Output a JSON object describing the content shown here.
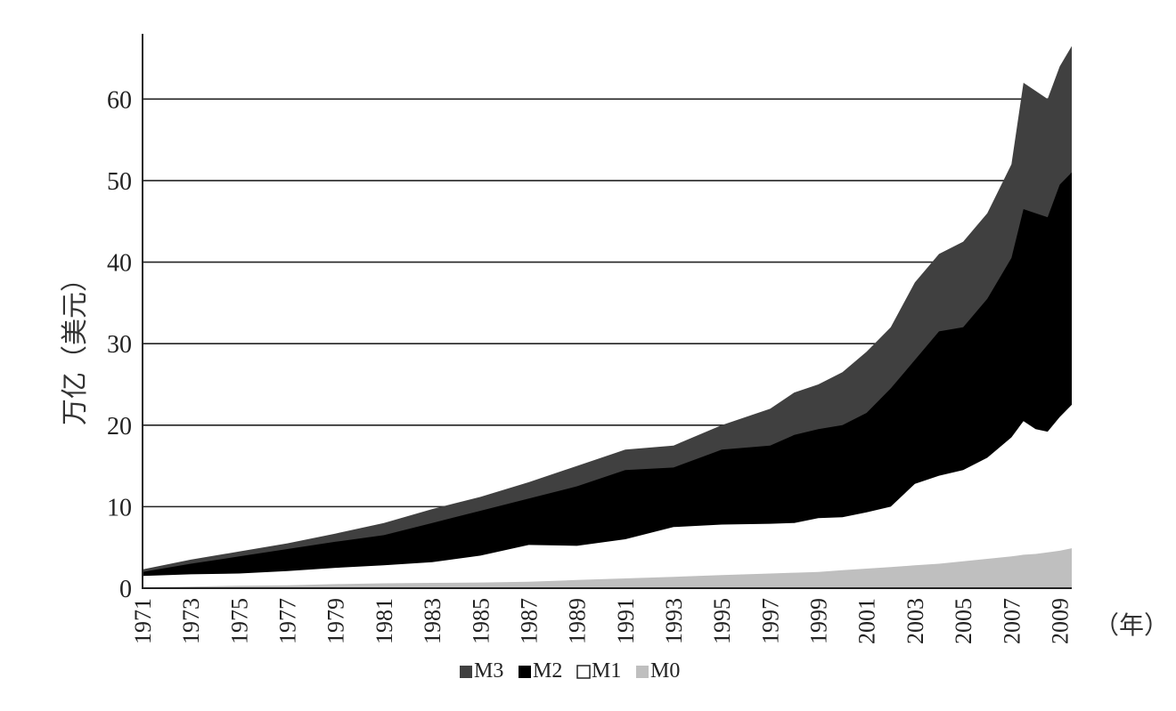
{
  "chart_data": {
    "type": "area",
    "title": "",
    "ylabel": "万亿（美元）",
    "xunit": "（年）",
    "ylim": [
      0,
      68
    ],
    "yticks": [
      0,
      10,
      20,
      30,
      40,
      50,
      60
    ],
    "xtick_labels": [
      "1971",
      "1973",
      "1975",
      "1977",
      "1979",
      "1981",
      "1983",
      "1985",
      "1987",
      "1989",
      "1991",
      "1993",
      "1995",
      "1997",
      "1999",
      "2001",
      "2003",
      "2005",
      "2007",
      "2009"
    ],
    "grid": "horizontal",
    "legend_position": "bottom",
    "x": [
      1971,
      1973,
      1975,
      1977,
      1979,
      1981,
      1983,
      1985,
      1987,
      1989,
      1991,
      1993,
      1995,
      1997,
      1998,
      1999,
      2000,
      2001,
      2002,
      2003,
      2004,
      2005,
      2006,
      2007,
      2007.5,
      2008,
      2008.5,
      2009,
      2009.5
    ],
    "series": [
      {
        "name": "M3",
        "color": "#404040",
        "values": [
          2.3,
          3.5,
          4.5,
          5.5,
          6.7,
          8.0,
          9.7,
          11.2,
          13.0,
          15.0,
          17.0,
          17.5,
          20.0,
          22.0,
          24.0,
          25.0,
          26.5,
          29.0,
          32.0,
          37.5,
          41.0,
          42.5,
          46.0,
          52.0,
          62.0,
          61.0,
          60.0,
          64.0,
          66.5
        ]
      },
      {
        "name": "M2",
        "color": "#000000",
        "values": [
          2.0,
          3.0,
          3.9,
          4.8,
          5.7,
          6.5,
          8.0,
          9.5,
          11.0,
          12.5,
          14.5,
          14.8,
          17.0,
          17.5,
          18.8,
          19.5,
          20.0,
          21.5,
          24.5,
          28.0,
          31.5,
          32.0,
          35.5,
          40.5,
          46.5,
          46.0,
          45.5,
          49.5,
          51.0
        ]
      },
      {
        "name": "M1",
        "color": "#ffffff",
        "values": [
          1.5,
          1.7,
          1.8,
          2.1,
          2.5,
          2.8,
          3.2,
          4.0,
          5.3,
          5.2,
          6.0,
          7.5,
          7.8,
          7.9,
          8.0,
          8.6,
          8.7,
          9.3,
          10.0,
          12.8,
          13.8,
          14.5,
          16.0,
          18.5,
          20.5,
          19.5,
          19.2,
          21.0,
          22.5
        ]
      },
      {
        "name": "M0",
        "color": "#bfbfbf",
        "values": [
          0.1,
          0.2,
          0.3,
          0.35,
          0.5,
          0.6,
          0.65,
          0.7,
          0.8,
          1.0,
          1.2,
          1.4,
          1.6,
          1.8,
          1.9,
          2.0,
          2.2,
          2.4,
          2.6,
          2.8,
          3.0,
          3.3,
          3.6,
          3.9,
          4.1,
          4.2,
          4.4,
          4.6,
          4.9
        ]
      }
    ]
  }
}
